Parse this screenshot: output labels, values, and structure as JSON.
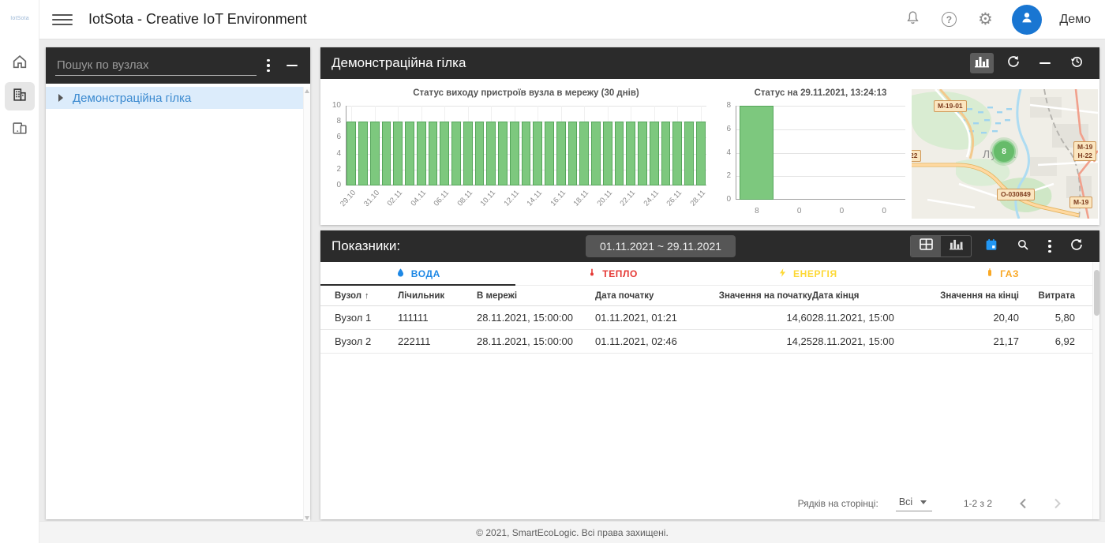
{
  "brand": {
    "logo_text": "IotSota"
  },
  "topbar": {
    "title": "IotSota - Creative IoT Environment",
    "user_name": "Демо"
  },
  "tree_panel": {
    "search_placeholder": "Пошук по вузлах",
    "items": [
      {
        "label": "Демонстраційна гілка"
      }
    ]
  },
  "node_panel": {
    "title": "Демонстраційна гілка"
  },
  "chart_data": [
    {
      "type": "bar",
      "title": "Статус виходу пристроїв вузла в мережу (30 днів)",
      "ylabel": "",
      "xlabel": "",
      "ylim": [
        0,
        10
      ],
      "yticks": [
        0,
        2,
        4,
        6,
        8,
        10
      ],
      "values": [
        8,
        8,
        8,
        8,
        8,
        8,
        8,
        8,
        8,
        8,
        8,
        8,
        8,
        8,
        8,
        8,
        8,
        8,
        8,
        8,
        8,
        8,
        8,
        8,
        8,
        8,
        8,
        8,
        8,
        8,
        8
      ],
      "x_tick_labels": [
        "29.10",
        "31.10",
        "02.11",
        "04.11",
        "06.11",
        "08.11",
        "10.11",
        "12.11",
        "14.11",
        "16.11",
        "18.11",
        "20.11",
        "22.11",
        "24.11",
        "26.11",
        "28.11"
      ],
      "x_label_every": 2,
      "rotate_x_labels": true,
      "grid": true,
      "bar_color": "#7dc87e",
      "bar_border": "#55a55a"
    },
    {
      "type": "bar",
      "title": "Статус на 29.11.2021, 13:24:13",
      "ylabel": "",
      "xlabel": "",
      "ylim": [
        0,
        8
      ],
      "yticks": [
        0,
        2,
        4,
        6,
        8
      ],
      "categories": [
        "8",
        "0",
        "0",
        "0"
      ],
      "values": [
        8,
        0,
        0,
        0
      ],
      "rotate_x_labels": false,
      "grid": true,
      "bar_color": "#7dc87e",
      "bar_border": "#55a55a"
    }
  ],
  "map": {
    "city": "Луцьк",
    "marker_value": "8",
    "road_labels": [
      "M-19-01",
      "22",
      "M-19",
      "H-22",
      "O-030849",
      "M-19"
    ]
  },
  "metrics_panel": {
    "title": "Показники:",
    "date_range": "01.11.2021 ~ 29.11.2021",
    "tabs": [
      {
        "label": "ВОДА",
        "color": "#1e88e5",
        "icon": "droplet-icon"
      },
      {
        "label": "ТЕПЛО",
        "color": "#e53935",
        "icon": "thermometer-icon"
      },
      {
        "label": "ЕНЕРГІЯ",
        "color": "#fdd835",
        "icon": "bolt-icon"
      },
      {
        "label": "ГАЗ",
        "color": "#f9a825",
        "icon": "gas-cylinder-icon"
      }
    ],
    "active_tab": "ВОДА",
    "table": {
      "columns": [
        "Вузол",
        "Лічильник",
        "В мережі",
        "Дата початку",
        "Значення на початку",
        "Дата кінця",
        "Значення на кінці",
        "Витрата"
      ],
      "sort_column": "Вузол",
      "sort_direction": "asc",
      "rows": [
        [
          "Вузол 1",
          "111111",
          "28.11.2021, 15:00:00",
          "01.11.2021, 01:21",
          "14,60",
          "28.11.2021, 15:00",
          "20,40",
          "5,80"
        ],
        [
          "Вузол 2",
          "222111",
          "28.11.2021, 15:00:00",
          "01.11.2021, 02:46",
          "14,25",
          "28.11.2021, 15:00",
          "21,17",
          "6,92"
        ]
      ]
    },
    "pagination": {
      "rows_per_page_label": "Рядків на сторінці:",
      "rows_per_page_value": "Всі",
      "range": "1-2 з 2"
    }
  },
  "footer": {
    "copyright": "© 2021, SmartEcoLogic. Всі права захищені."
  },
  "colors": {
    "header_dark": "#2b2b2b",
    "accent_blue": "#1e88e5",
    "calendar_blue": "#2196f3",
    "bar_green": "#7dc87e",
    "bar_green_border": "#55a55a",
    "tree_selection": "#dcecfb",
    "avatar_blue": "#1976d2"
  }
}
